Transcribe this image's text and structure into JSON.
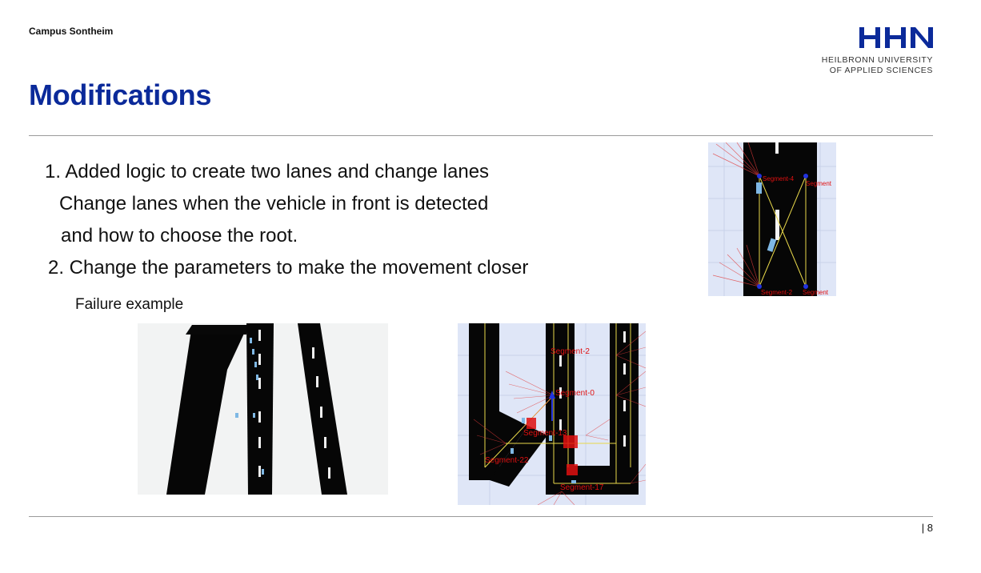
{
  "header": {
    "campus": "Campus Sontheim",
    "logo_mark": "HHN",
    "logo_line1": "HEILBRONN UNIVERSITY",
    "logo_line2": "OF APPLIED SCIENCES"
  },
  "title": "Modifications",
  "bullets": [
    "1. Added logic to create two lanes and change lanes",
    "Change lanes when the vehicle in front is detected",
    "and how to choose the root.",
    "2. Change the parameters to make the movement closer"
  ],
  "caption": "Failure example",
  "sim_labels": {
    "top_right": [
      "Segment-4",
      "Segment",
      "Segment-2",
      "Segment"
    ],
    "bottom_right": [
      "Segment-2",
      "Segment-0",
      "Segment-13",
      "Segment-22",
      "Segment-17"
    ]
  },
  "footer": {
    "page": "| 8"
  },
  "colors": {
    "title": "#0b2a9a",
    "logo": "#0b2a9a",
    "road": "#050505",
    "segment": "#e01010"
  }
}
